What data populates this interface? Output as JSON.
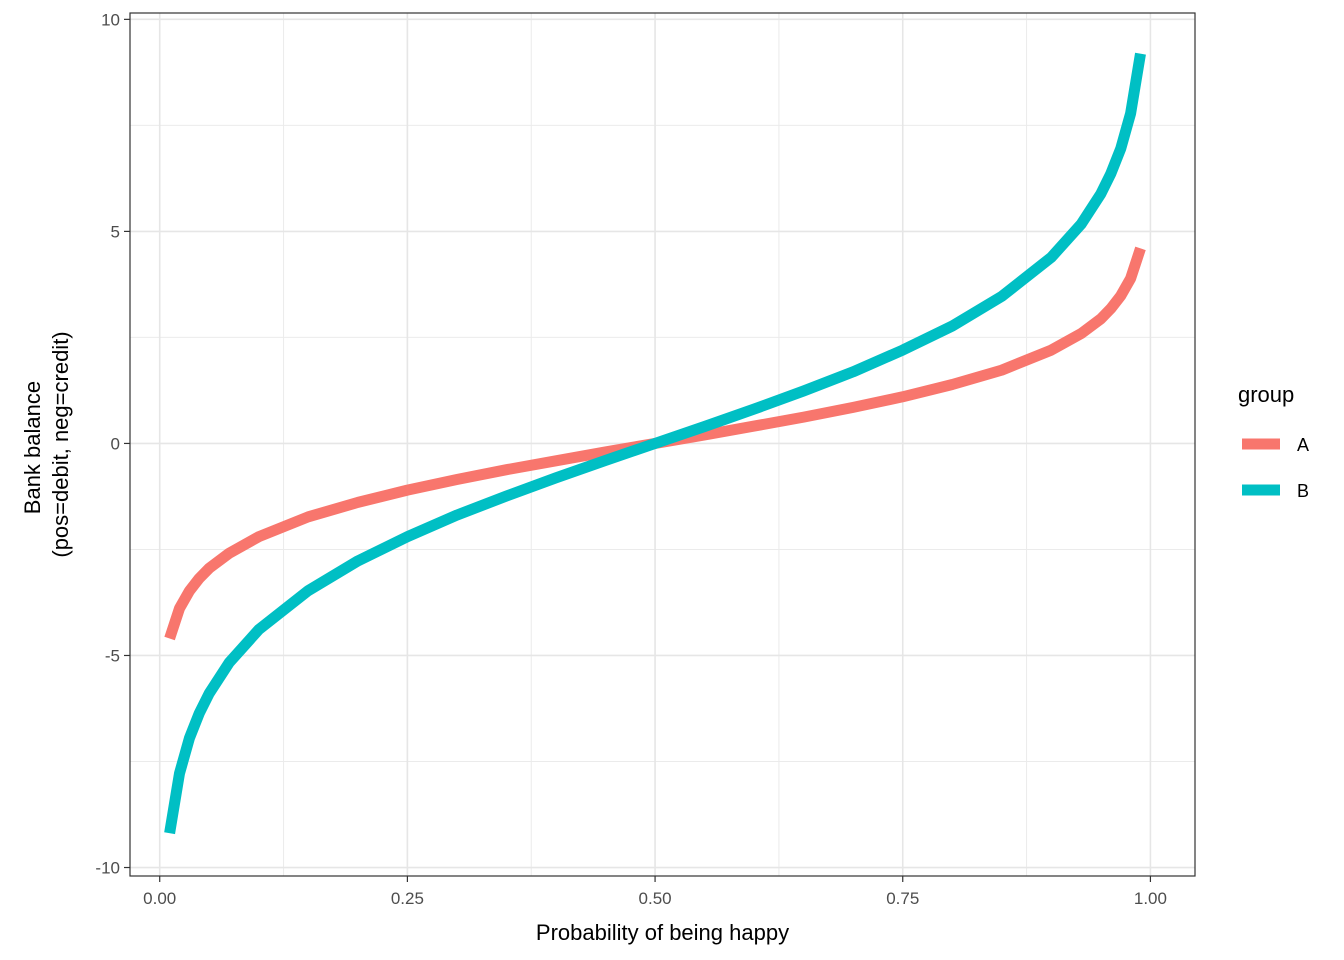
{
  "chart_data": {
    "type": "line",
    "xlabel": "Probability of being happy",
    "ylabel_lines": [
      "Bank balance",
      "(pos=debit, neg=credit)"
    ],
    "xlim": [
      -0.03,
      1.045
    ],
    "ylim": [
      -10.2,
      10.15
    ],
    "x_ticks": [
      {
        "value": 0.0,
        "label": "0.00"
      },
      {
        "value": 0.25,
        "label": "0.25"
      },
      {
        "value": 0.5,
        "label": "0.50"
      },
      {
        "value": 0.75,
        "label": "0.75"
      },
      {
        "value": 1.0,
        "label": "1.00"
      }
    ],
    "y_ticks": [
      {
        "value": -10,
        "label": "-10"
      },
      {
        "value": -5,
        "label": "-5"
      },
      {
        "value": 0,
        "label": "0"
      },
      {
        "value": 5,
        "label": "5"
      },
      {
        "value": 10,
        "label": "10"
      }
    ],
    "x_minor_grid": [
      0.125,
      0.375,
      0.625,
      0.875
    ],
    "y_minor_grid": [
      -7.5,
      -2.5,
      2.5,
      7.5
    ],
    "grid": true,
    "legend_position": "right",
    "legend_title": "group",
    "series": [
      {
        "name": "A",
        "color": "#F8766D",
        "x": [
          0.01,
          0.02,
          0.03,
          0.04,
          0.05,
          0.07,
          0.1,
          0.15,
          0.2,
          0.25,
          0.3,
          0.35,
          0.4,
          0.45,
          0.5,
          0.55,
          0.6,
          0.65,
          0.7,
          0.75,
          0.8,
          0.85,
          0.9,
          0.93,
          0.95,
          0.96,
          0.97,
          0.98,
          0.99
        ],
        "y": [
          -4.6,
          -3.89,
          -3.48,
          -3.18,
          -2.94,
          -2.59,
          -2.2,
          -1.73,
          -1.39,
          -1.1,
          -0.85,
          -0.62,
          -0.41,
          -0.2,
          0.0,
          0.2,
          0.41,
          0.62,
          0.85,
          1.1,
          1.39,
          1.73,
          2.2,
          2.59,
          2.94,
          3.18,
          3.48,
          3.89,
          4.6
        ]
      },
      {
        "name": "B",
        "color": "#00BFC4",
        "x": [
          0.01,
          0.02,
          0.03,
          0.04,
          0.05,
          0.07,
          0.1,
          0.15,
          0.2,
          0.25,
          0.3,
          0.35,
          0.4,
          0.45,
          0.5,
          0.55,
          0.6,
          0.65,
          0.7,
          0.75,
          0.8,
          0.85,
          0.9,
          0.93,
          0.95,
          0.96,
          0.97,
          0.98,
          0.99
        ],
        "y": [
          -9.19,
          -7.78,
          -6.95,
          -6.36,
          -5.89,
          -5.17,
          -4.39,
          -3.47,
          -2.77,
          -2.2,
          -1.69,
          -1.24,
          -0.81,
          -0.4,
          0.0,
          0.4,
          0.81,
          1.24,
          1.69,
          2.2,
          2.77,
          3.47,
          4.39,
          5.17,
          5.89,
          6.36,
          6.95,
          7.78,
          9.19
        ]
      }
    ]
  }
}
